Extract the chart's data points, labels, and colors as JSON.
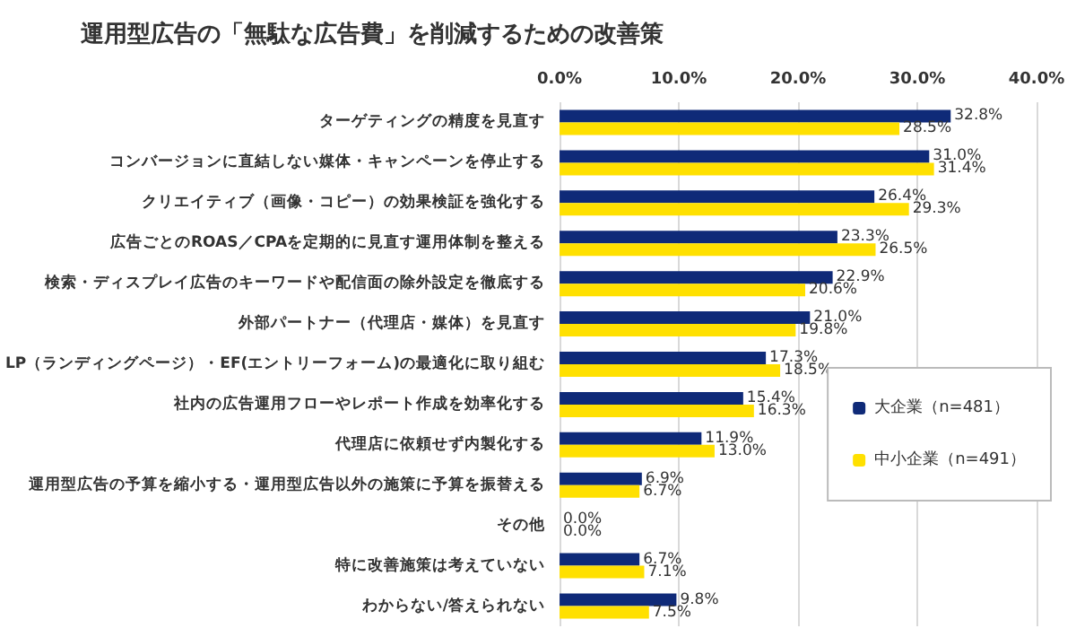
{
  "chart_data": {
    "type": "bar",
    "orientation": "horizontal",
    "title": "運用型広告の「無駄な広告費」を削減するための改善策",
    "categories": [
      "ターゲティングの精度を見直す",
      "コンバージョンに直結しない媒体・キャンペーンを停止する",
      "クリエイティブ（画像・コピー）の効果検証を強化する",
      "広告ごとのROAS／CPAを定期的に見直す運用体制を整える",
      "検索・ディスプレイ広告のキーワードや配信面の除外設定を徹底する",
      "外部パートナー（代理店・媒体）を見直す",
      "LP（ランディングページ）・EF(エントリーフォーム)の最適化に取り組む",
      "社内の広告運用フローやレポート作成を効率化する",
      "代理店に依頼せず内製化する",
      "運用型広告の予算を縮小する・運用型広告以外の施策に予算を振替える",
      "その他",
      "特に改善施策は考えていない",
      "わからない/答えられない"
    ],
    "series": [
      {
        "name": "大企業（n=481）",
        "color": "#0f2a78",
        "values": [
          32.8,
          31.0,
          26.4,
          23.3,
          22.9,
          21.0,
          17.3,
          15.4,
          11.9,
          6.9,
          0.0,
          6.7,
          9.8
        ],
        "value_labels": [
          "32.8%",
          "31.0%",
          "26.4%",
          "23.3%",
          "22.9%",
          "21.0%",
          "17.3%",
          "15.4%",
          "11.9%",
          "6.9%",
          "0.0%",
          "6.7%",
          "9.8%"
        ]
      },
      {
        "name": "中小企業（n=491）",
        "color": "#ffe000",
        "values": [
          28.5,
          31.4,
          29.3,
          26.5,
          20.6,
          19.8,
          18.5,
          16.3,
          13.0,
          6.7,
          0.0,
          7.1,
          7.5
        ],
        "value_labels": [
          "28.5%",
          "31.4%",
          "29.3%",
          "26.5%",
          "20.6%",
          "19.8%",
          "18.5%",
          "16.3%",
          "13.0%",
          "6.7%",
          "0.0%",
          "7.1%",
          "7.5%"
        ]
      }
    ],
    "xlim": [
      0,
      40
    ],
    "xticks": [
      {
        "value": 0,
        "label": "0.0%"
      },
      {
        "value": 10,
        "label": "10.0%"
      },
      {
        "value": 20,
        "label": "20.0%"
      },
      {
        "value": 30,
        "label": "30.0%"
      },
      {
        "value": 40,
        "label": "40.0%"
      }
    ],
    "grid": "x",
    "legend": "right"
  }
}
